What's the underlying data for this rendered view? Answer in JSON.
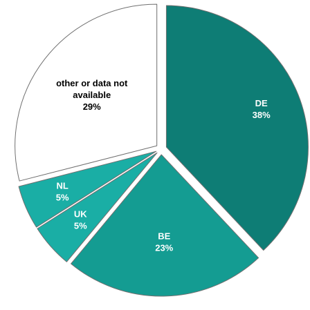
{
  "chart_data": {
    "type": "pie",
    "slices": [
      {
        "label": "DE",
        "value": 38,
        "value_label": "38%",
        "color": "#0e7d75",
        "text_color": "#ffffff"
      },
      {
        "label": "BE",
        "value": 23,
        "value_label": "23%",
        "color": "#149c92",
        "text_color": "#ffffff"
      },
      {
        "label": "UK",
        "value": 5,
        "value_label": "5%",
        "color": "#1aaea5",
        "text_color": "#ffffff"
      },
      {
        "label": "NL",
        "value": 5,
        "value_label": "5%",
        "color": "#1aaea5",
        "text_color": "#ffffff"
      },
      {
        "label": "other or data not available",
        "value": 29,
        "value_label": "29%",
        "color": "#ffffff",
        "text_color": "#000000"
      }
    ],
    "start": "12 o'clock",
    "direction": "clockwise",
    "exploded": true,
    "legend": "none",
    "title": ""
  }
}
